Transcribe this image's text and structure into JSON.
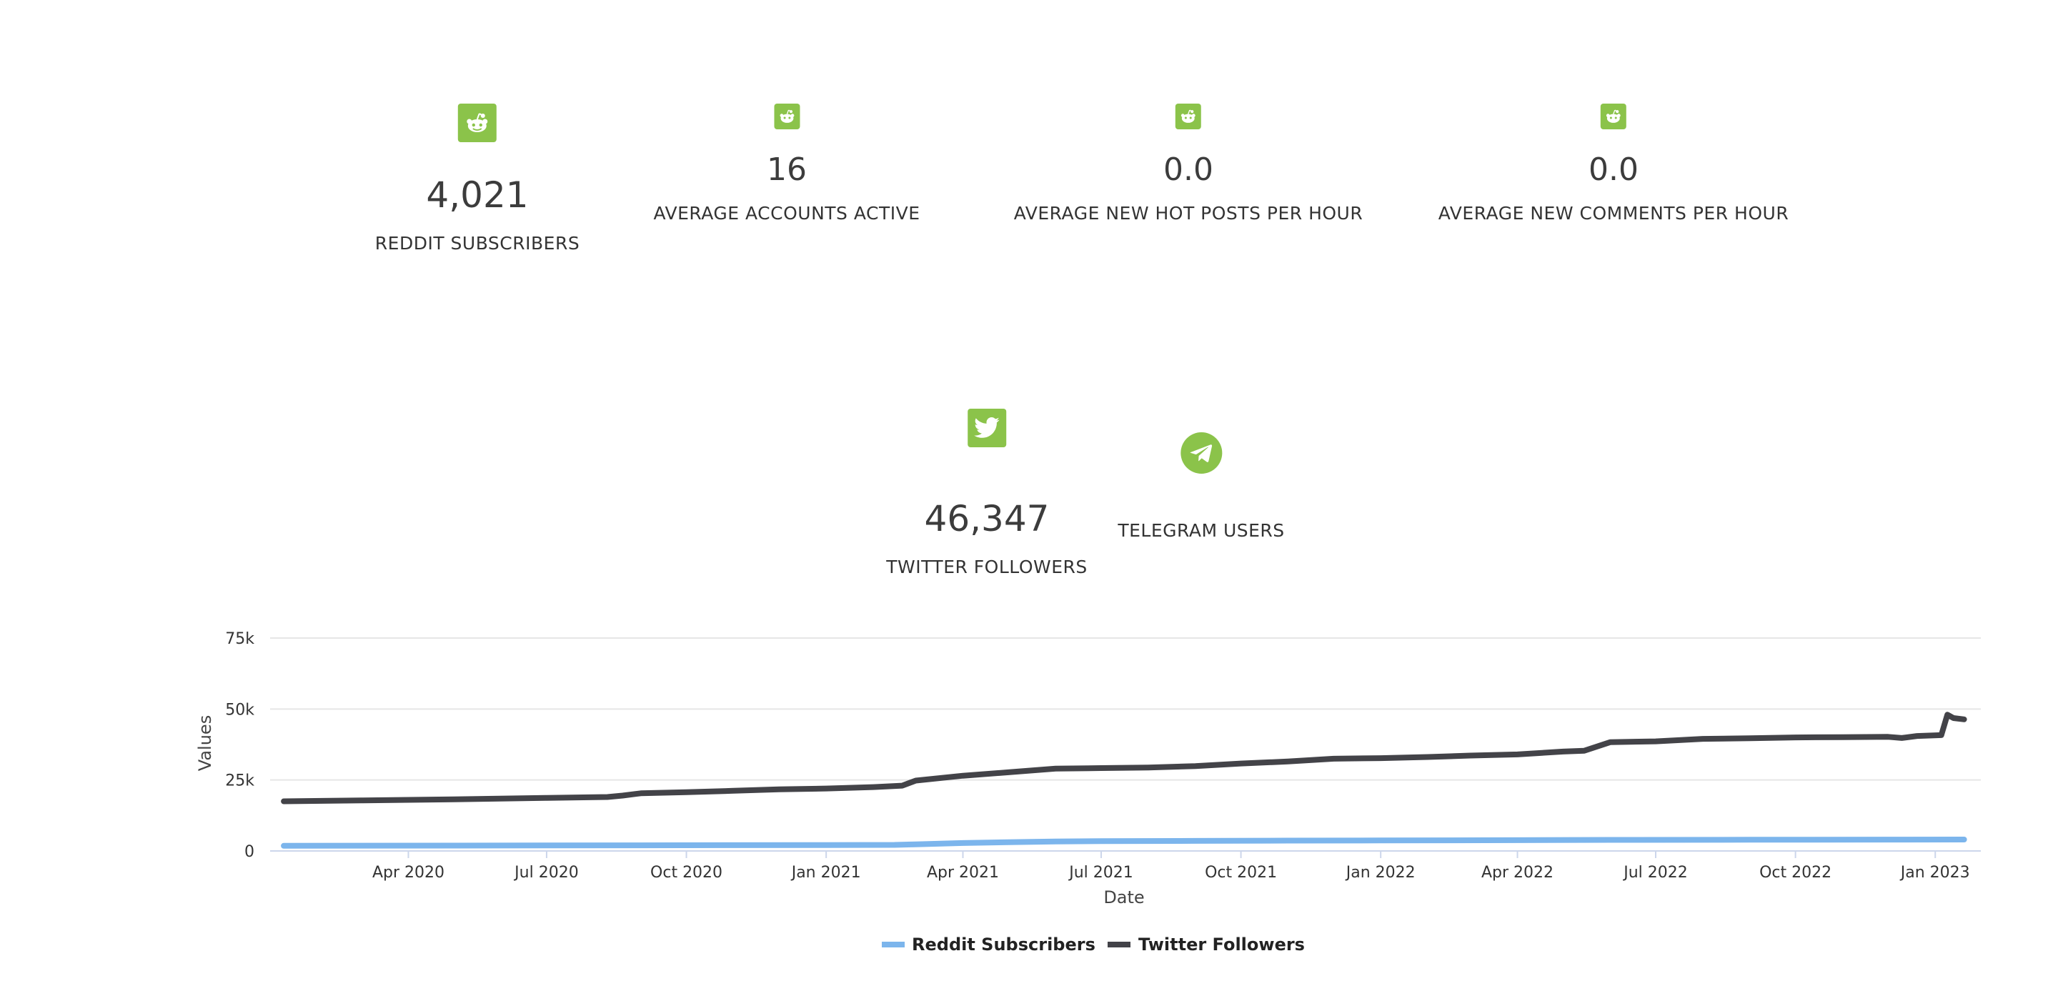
{
  "stats": {
    "reddit_subscribers": {
      "value": "4,021",
      "label": "REDDIT SUBSCRIBERS",
      "icon": "reddit-icon"
    },
    "accounts_active": {
      "value": "16",
      "label": "AVERAGE ACCOUNTS ACTIVE",
      "icon": "reddit-icon"
    },
    "hot_posts": {
      "value": "0.0",
      "label": "AVERAGE NEW HOT POSTS PER HOUR",
      "icon": "reddit-icon"
    },
    "comments": {
      "value": "0.0",
      "label": "AVERAGE NEW COMMENTS PER HOUR",
      "icon": "reddit-icon"
    },
    "twitter": {
      "value": "46,347",
      "label": "TWITTER FOLLOWERS",
      "icon": "twitter-icon"
    },
    "telegram": {
      "label": "TELEGRAM USERS",
      "icon": "telegram-icon"
    }
  },
  "colors": {
    "icon_green": "#8bc34a",
    "reddit_series": "#7cb5ec",
    "twitter_series": "#434348",
    "grid": "#e6e6e6",
    "axis_line": "#ccd6eb"
  },
  "chart_data": {
    "type": "line",
    "xlabel": "Date",
    "ylabel": "Values",
    "x_range": [
      "2020-01-01",
      "2023-01-31"
    ],
    "ylim": [
      0,
      75000
    ],
    "y_ticks": [
      0,
      25000,
      50000,
      75000
    ],
    "y_tick_labels": [
      "0",
      "25k",
      "50k",
      "75k"
    ],
    "x_ticks": [
      {
        "date": "2020-04-01",
        "label": "Apr 2020"
      },
      {
        "date": "2020-07-01",
        "label": "Jul 2020"
      },
      {
        "date": "2020-10-01",
        "label": "Oct 2020"
      },
      {
        "date": "2021-01-01",
        "label": "Jan 2021"
      },
      {
        "date": "2021-04-01",
        "label": "Apr 2021"
      },
      {
        "date": "2021-07-01",
        "label": "Jul 2021"
      },
      {
        "date": "2021-10-01",
        "label": "Oct 2021"
      },
      {
        "date": "2022-01-01",
        "label": "Jan 2022"
      },
      {
        "date": "2022-04-01",
        "label": "Apr 2022"
      },
      {
        "date": "2022-07-01",
        "label": "Jul 2022"
      },
      {
        "date": "2022-10-01",
        "label": "Oct 2022"
      },
      {
        "date": "2023-01-01",
        "label": "Jan 2023"
      }
    ],
    "grid": true,
    "legend_position": "bottom-center",
    "series": [
      {
        "name": "Reddit Subscribers",
        "color": "#7cb5ec",
        "points": [
          [
            "2020-01-10",
            1800
          ],
          [
            "2020-03-01",
            1850
          ],
          [
            "2020-05-01",
            1900
          ],
          [
            "2020-07-01",
            1950
          ],
          [
            "2020-09-01",
            2000
          ],
          [
            "2020-11-01",
            2050
          ],
          [
            "2021-01-01",
            2100
          ],
          [
            "2021-02-15",
            2150
          ],
          [
            "2021-03-01",
            2350
          ],
          [
            "2021-04-01",
            2800
          ],
          [
            "2021-05-01",
            3100
          ],
          [
            "2021-06-01",
            3350
          ],
          [
            "2021-07-01",
            3450
          ],
          [
            "2021-09-01",
            3550
          ],
          [
            "2021-11-01",
            3650
          ],
          [
            "2022-01-01",
            3700
          ],
          [
            "2022-04-01",
            3800
          ],
          [
            "2022-06-01",
            3900
          ],
          [
            "2022-09-01",
            3950
          ],
          [
            "2022-12-01",
            4000
          ],
          [
            "2023-01-20",
            4021
          ]
        ]
      },
      {
        "name": "Twitter Followers",
        "color": "#434348",
        "points": [
          [
            "2020-01-10",
            17500
          ],
          [
            "2020-03-01",
            17800
          ],
          [
            "2020-05-01",
            18200
          ],
          [
            "2020-07-01",
            18700
          ],
          [
            "2020-08-10",
            19000
          ],
          [
            "2020-08-20",
            19500
          ],
          [
            "2020-09-01",
            20300
          ],
          [
            "2020-10-01",
            20700
          ],
          [
            "2020-11-01",
            21200
          ],
          [
            "2020-12-01",
            21700
          ],
          [
            "2021-01-01",
            22000
          ],
          [
            "2021-02-01",
            22500
          ],
          [
            "2021-02-20",
            23000
          ],
          [
            "2021-03-01",
            24800
          ],
          [
            "2021-04-01",
            26500
          ],
          [
            "2021-05-01",
            27700
          ],
          [
            "2021-06-01",
            29000
          ],
          [
            "2021-07-01",
            29200
          ],
          [
            "2021-08-01",
            29400
          ],
          [
            "2021-09-01",
            29900
          ],
          [
            "2021-10-01",
            30800
          ],
          [
            "2021-11-01",
            31500
          ],
          [
            "2021-12-01",
            32500
          ],
          [
            "2022-01-01",
            32700
          ],
          [
            "2022-02-01",
            33100
          ],
          [
            "2022-03-01",
            33600
          ],
          [
            "2022-04-01",
            34000
          ],
          [
            "2022-05-01",
            35000
          ],
          [
            "2022-05-15",
            35300
          ],
          [
            "2022-06-01",
            38300
          ],
          [
            "2022-07-01",
            38600
          ],
          [
            "2022-08-01",
            39500
          ],
          [
            "2022-09-01",
            39700
          ],
          [
            "2022-10-01",
            40000
          ],
          [
            "2022-11-01",
            40100
          ],
          [
            "2022-12-01",
            40200
          ],
          [
            "2022-12-10",
            39800
          ],
          [
            "2022-12-20",
            40500
          ],
          [
            "2023-01-05",
            40800
          ],
          [
            "2023-01-09",
            48000
          ],
          [
            "2023-01-13",
            46800
          ],
          [
            "2023-01-20",
            46347
          ]
        ]
      }
    ]
  }
}
